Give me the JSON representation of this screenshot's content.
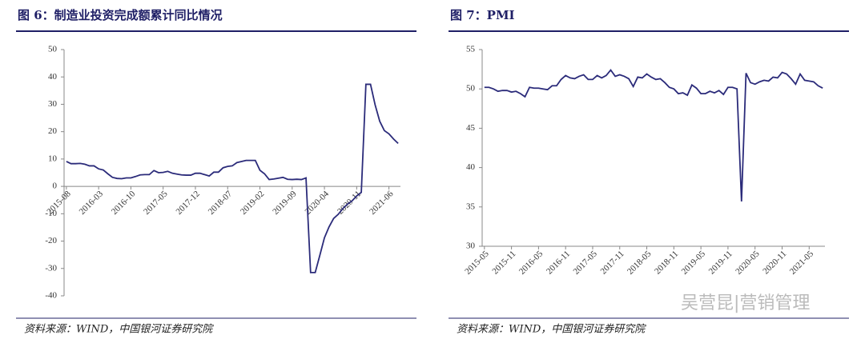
{
  "chart_data": [
    {
      "type": "line",
      "title": "图 6：制造业投资完成额累计同比情况",
      "categories": [
        "2015-08",
        null,
        null,
        null,
        null,
        null,
        null,
        "2016-03",
        null,
        null,
        null,
        null,
        null,
        null,
        "2016-10",
        null,
        null,
        null,
        null,
        null,
        null,
        "2017-05",
        null,
        null,
        null,
        null,
        null,
        null,
        "2017-12",
        null,
        null,
        null,
        null,
        null,
        null,
        "2018-07",
        null,
        null,
        null,
        null,
        null,
        null,
        "2019-02",
        null,
        null,
        null,
        null,
        null,
        null,
        "2019-09",
        null,
        null,
        null,
        null,
        null,
        null,
        "2020-04",
        null,
        null,
        null,
        null,
        null,
        null,
        "2020-11",
        null,
        null,
        null,
        null,
        null,
        null,
        "2021-06",
        null,
        null
      ],
      "series": [
        {
          "color": "#2b2b7a",
          "values": [
            9.1,
            8.3,
            8.3,
            8.4,
            8.1,
            7.5,
            7.5,
            6.4,
            6.0,
            4.6,
            3.3,
            2.9,
            2.8,
            3.1,
            3.1,
            3.6,
            4.2,
            4.3,
            4.3,
            5.8,
            5.0,
            5.1,
            5.5,
            4.8,
            4.5,
            4.2,
            4.1,
            4.1,
            4.8,
            4.8,
            4.3,
            3.8,
            5.2,
            5.2,
            6.8,
            7.3,
            7.5,
            8.7,
            9.1,
            9.5,
            9.5,
            9.5,
            5.9,
            4.6,
            2.5,
            2.7,
            3.0,
            3.3,
            2.6,
            2.5,
            2.6,
            2.5,
            3.1,
            -31.5,
            -31.5,
            -25.2,
            -18.8,
            -14.8,
            -11.7,
            -10.2,
            -8.1,
            -6.5,
            -5.3,
            -3.5,
            -2.2,
            37.3,
            37.3,
            29.8,
            23.8,
            20.4,
            19.2,
            17.3,
            15.7
          ]
        }
      ],
      "ylim": [
        -40,
        50
      ],
      "yticks": [
        -40,
        -30,
        -20,
        -10,
        0,
        10,
        20,
        30,
        40,
        50
      ],
      "grid": false,
      "source": "资料来源：WIND，中国银河证券研究院"
    },
    {
      "type": "line",
      "title": "图 7：PMI",
      "categories": [
        "2015-05",
        null,
        null,
        null,
        null,
        null,
        "2015-11",
        null,
        null,
        null,
        null,
        null,
        "2016-05",
        null,
        null,
        null,
        null,
        null,
        "2016-11",
        null,
        null,
        null,
        null,
        null,
        "2017-05",
        null,
        null,
        null,
        null,
        null,
        "2017-11",
        null,
        null,
        null,
        null,
        null,
        "2018-05",
        null,
        null,
        null,
        null,
        null,
        "2018-11",
        null,
        null,
        null,
        null,
        null,
        "2019-05",
        null,
        null,
        null,
        null,
        null,
        "2019-11",
        null,
        null,
        null,
        null,
        null,
        "2020-05",
        null,
        null,
        null,
        null,
        null,
        "2020-11",
        null,
        null,
        null,
        null,
        null,
        "2021-05",
        null,
        null,
        null
      ],
      "series": [
        {
          "color": "#2b2b7a",
          "values": [
            50.2,
            50.2,
            50.0,
            49.7,
            49.8,
            49.8,
            49.6,
            49.7,
            49.4,
            49.0,
            50.2,
            50.1,
            50.1,
            50.0,
            49.9,
            50.4,
            50.4,
            51.2,
            51.7,
            51.4,
            51.3,
            51.6,
            51.8,
            51.2,
            51.2,
            51.7,
            51.4,
            51.7,
            52.4,
            51.6,
            51.8,
            51.6,
            51.3,
            50.3,
            51.5,
            51.4,
            51.9,
            51.5,
            51.2,
            51.3,
            50.8,
            50.2,
            50.0,
            49.4,
            49.5,
            49.2,
            50.5,
            50.1,
            49.4,
            49.4,
            49.7,
            49.5,
            49.8,
            49.3,
            50.2,
            50.2,
            50.0,
            35.7,
            52.0,
            50.8,
            50.6,
            50.9,
            51.1,
            51.0,
            51.5,
            51.4,
            52.1,
            51.9,
            51.3,
            50.6,
            51.9,
            51.1,
            51.0,
            50.9,
            50.4,
            50.1
          ]
        }
      ],
      "ylim": [
        30,
        55
      ],
      "yticks": [
        30,
        35,
        40,
        45,
        50,
        55
      ],
      "grid": false,
      "source": "资料来源：WIND，中国银河证券研究院"
    }
  ],
  "watermark": "吴营昆|营销管理"
}
